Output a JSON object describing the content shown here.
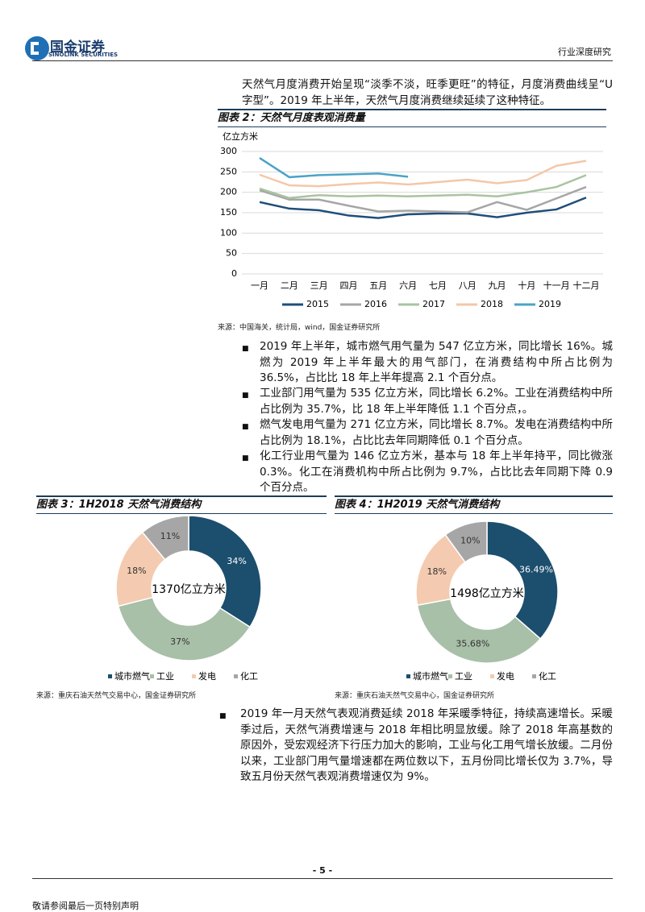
{
  "header": {
    "company": "国金证券",
    "company_en": "SINOLINK SECURITIES",
    "report_type": "行业深度研究"
  },
  "paragraphs": [
    "天然气月度消费开始呈现“淡季不淡，旺季更旺”的特征，月度消费曲线呈“U 字型”。2019 年上半年，天然气月度消费继续延续了这种特征。"
  ],
  "bullets": [
    "2019 年上半年，城市燃气用气量为 547 亿立方米，同比增长 16%。城燃为 2019 年上半年最大的用气部门，在消费结构中所占比例为 36.5%，占比比 18 年上半年提高 2.1 个百分点。",
    "工业部门用气量为 535 亿立方米，同比增长 6.2%。工业在消费结构中所占比例为 35.7%，比 18 年上半年降低 1.1 个百分点，。",
    "燃气发电用气量为 271 亿立方米，同比增长 8.7%。发电在消费结构中所占比例为 18.1%，占比比去年同期降低 0.1 个百分点。",
    "化工行业用气量为 146 亿立方米，基本与 18 年上半年持平，同比微涨 0.3%。化工在消费机构中所占比例为 9.7%，占比比去年同期下降 0.9 个百分点。"
  ],
  "closing_bullet": "2019 年一月天然气表观消费延续 2018 年采暖季特征，持续高速增长。采暖季过后，天然气消费增速与 2018 年相比明显放缓。除了 2018 年高基数的原因外，受宏观经济下行压力加大的影响，工业与化工用气增长放缓。二月份以来，工业部门用气量增速都在两位数以下，五月份同比增长仅为 3.7%，导致五月份天然气表观消费增速仅为 9%。",
  "chart_data": [
    {
      "type": "line",
      "title": "图表 2：天然气月度表观消费量",
      "y_label": "亿立方米",
      "categories": [
        "一月",
        "二月",
        "三月",
        "四月",
        "五月",
        "六月",
        "七月",
        "八月",
        "九月",
        "十月",
        "十一月",
        "十二月"
      ],
      "series": [
        {
          "name": "2015",
          "color": "#1f4e79",
          "values": [
            176,
            160,
            156,
            143,
            137,
            146,
            148,
            148,
            139,
            150,
            158,
            187
          ]
        },
        {
          "name": "2016",
          "color": "#a6a6a6",
          "values": [
            205,
            182,
            182,
            167,
            153,
            155,
            153,
            151,
            176,
            157,
            185,
            213
          ]
        },
        {
          "name": "2017",
          "color": "#a9c4a0",
          "values": [
            209,
            186,
            193,
            190,
            192,
            190,
            192,
            194,
            190,
            200,
            213,
            242
          ]
        },
        {
          "name": "2018",
          "color": "#f4c7a8",
          "values": [
            243,
            217,
            215,
            220,
            224,
            219,
            225,
            231,
            222,
            230,
            265,
            277
          ]
        },
        {
          "name": "2019",
          "color": "#4ba3c7",
          "values": [
            284,
            237,
            242,
            244,
            246,
            238,
            null,
            null,
            null,
            null,
            null,
            null
          ]
        }
      ],
      "ylim": [
        0,
        300
      ],
      "yticks": [
        0,
        50,
        100,
        150,
        200,
        250,
        300
      ],
      "grid": true,
      "legend": "bottom",
      "source": "来源：中国海关，统计局，wind，国金证券研究所"
    },
    {
      "type": "pie",
      "title": "图表 3：1H2018 天然气消费结构",
      "center_label": "1370亿立方米",
      "categories": [
        "城市燃气",
        "工业",
        "发电",
        "化工"
      ],
      "values": [
        34,
        37,
        18,
        11
      ],
      "value_labels": [
        "34%",
        "37%",
        "18%",
        "11%"
      ],
      "colors": [
        "#1c4e6e",
        "#a8bfa8",
        "#f4cbb0",
        "#a6a6a6"
      ],
      "legend": "bottom",
      "source": "来源：重庆石油天然气交易中心，国金证券研究所"
    },
    {
      "type": "pie",
      "title": "图表 4：1H2019 天然气消费结构",
      "center_label": "1498亿立方米",
      "categories": [
        "城市燃气",
        "工业",
        "发电",
        "化工"
      ],
      "values": [
        36.49,
        35.68,
        18,
        10
      ],
      "value_labels": [
        "36.49%",
        "35.68%",
        "18%",
        "10%"
      ],
      "colors": [
        "#1c4e6e",
        "#a8bfa8",
        "#f4cbb0",
        "#a6a6a6"
      ],
      "legend": "bottom",
      "source": "来源：重庆石油天然气交易中心，国金证券研究所"
    }
  ],
  "footer": {
    "page": "- 5 -",
    "disclaimer": "敬请参阅最后一页特别声明"
  }
}
